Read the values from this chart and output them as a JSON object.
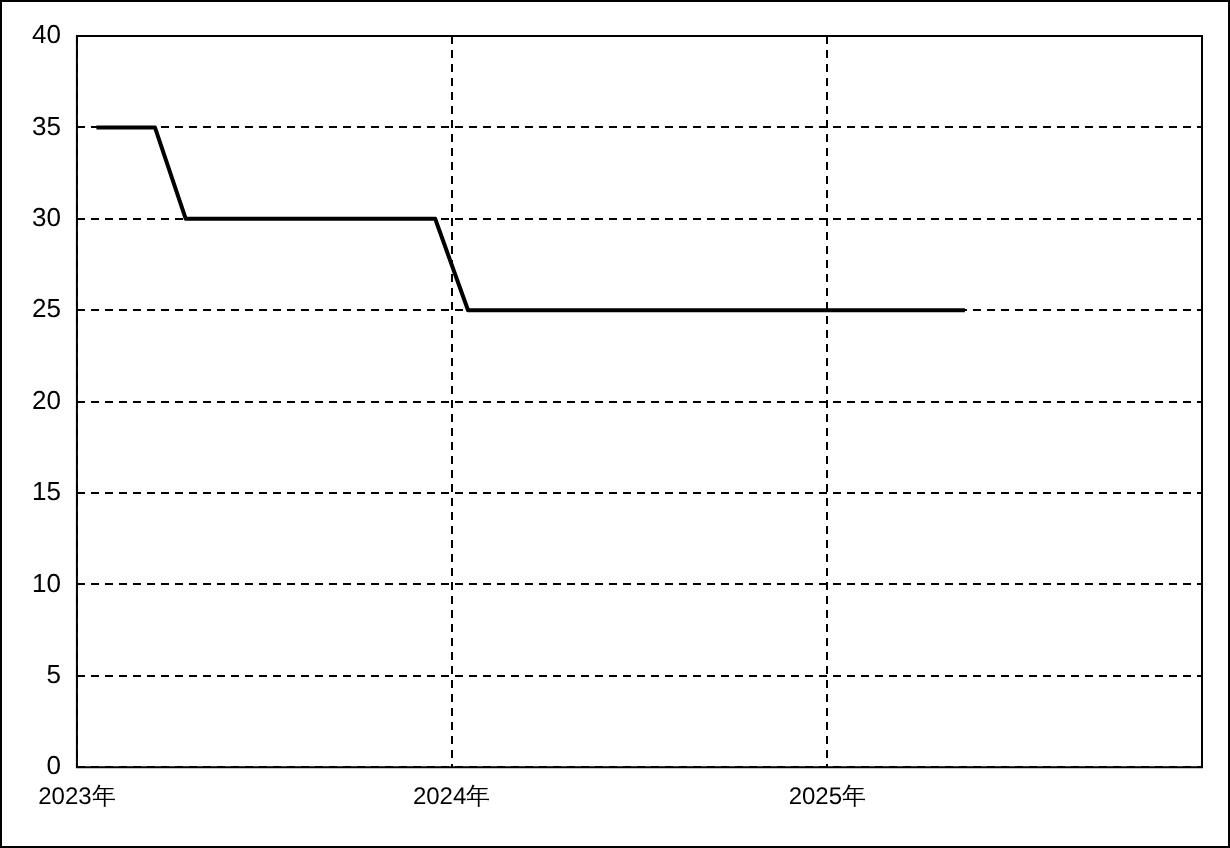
{
  "chart_data": {
    "type": "line",
    "x": [
      "2023-01-20",
      "2023-03-18",
      "2023-04-17",
      "2023-12-16",
      "2024-01-17",
      "2025-05-15"
    ],
    "series": [
      {
        "color": "#000000",
        "values": [
          35,
          35,
          30,
          30,
          25,
          25
        ]
      }
    ],
    "xlim": [
      "2023",
      "2026"
    ],
    "xticks": [
      {
        "value": "2023",
        "label": "2023年"
      },
      {
        "value": "2024",
        "label": "2024年"
      },
      {
        "value": "2025",
        "label": "2025年"
      }
    ],
    "ylim": [
      0,
      40
    ],
    "yticks": [
      0,
      5,
      10,
      15,
      20,
      25,
      30,
      35,
      40
    ],
    "grid": true,
    "legend": false,
    "marker": "none",
    "line_style": "solid"
  }
}
